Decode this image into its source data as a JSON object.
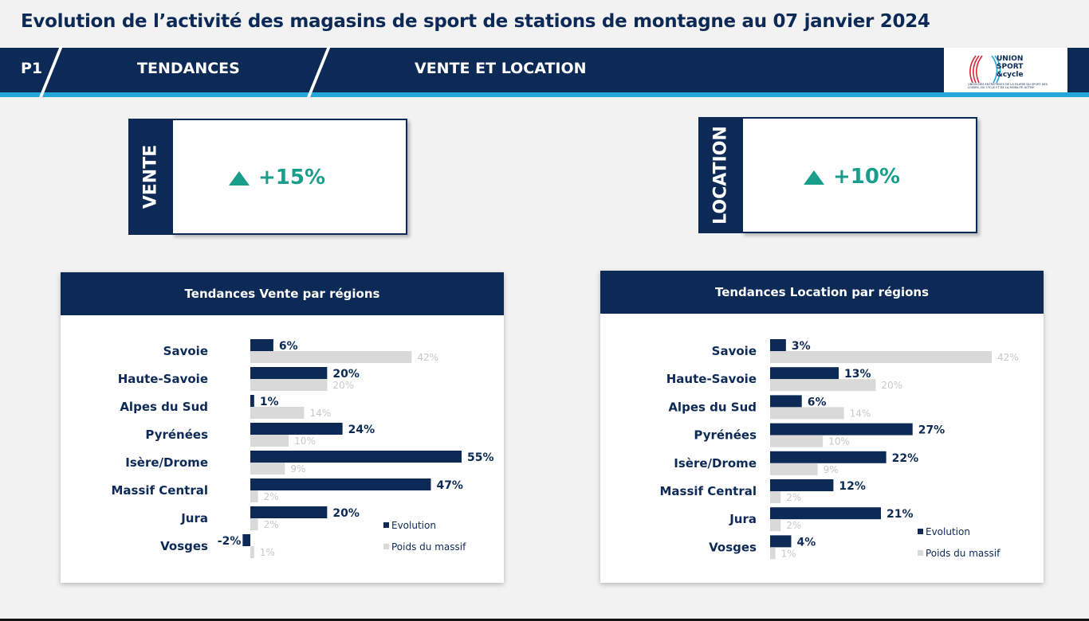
{
  "page": {
    "title": "Evolution de l’activité des magasins de sport de stations de montagne au 07 janvier 2024"
  },
  "banner": {
    "page_label": "P1",
    "section": "TENDANCES",
    "subsection": "VENTE ET LOCATION",
    "logo_text": [
      "UNION",
      "SPORT",
      "&cycle"
    ],
    "logo_tagline": "UNION DES ENTREPRISES DE LA FILIÈRE DU SPORT DES LOISIRS, DU CYCLE ET DE LA MOBILITÉ ACTIVE"
  },
  "kpis": {
    "vente": {
      "label": "VENTE",
      "value": "+15%",
      "icon": "up-triangle-icon"
    },
    "location": {
      "label": "LOCATION",
      "value": "+10%",
      "icon": "up-triangle-icon"
    }
  },
  "colors": {
    "navy": "#0d2a57",
    "accent_blue": "#24a7d8",
    "teal": "#1a9e8c",
    "grey_bar": "#d9d9d9"
  },
  "chart_data": [
    {
      "type": "bar",
      "orientation": "horizontal",
      "title": "Tendances Vente par régions",
      "categories": [
        "Savoie",
        "Haute-Savoie",
        "Alpes du Sud",
        "Pyrénées",
        "Isère/Drome",
        "Massif Central",
        "Jura",
        "Vosges"
      ],
      "series": [
        {
          "name": "Evolution",
          "values": [
            6,
            20,
            1,
            24,
            55,
            47,
            20,
            -2
          ],
          "labels": [
            "6%",
            "20%",
            "1%",
            "24%",
            "55%",
            "47%",
            "20%",
            "-2%"
          ],
          "color": "#0d2a57"
        },
        {
          "name": "Poids du massif",
          "values": [
            42,
            20,
            14,
            10,
            9,
            2,
            2,
            1
          ],
          "labels": [
            "42%",
            "20%",
            "14%",
            "10%",
            "9%",
            "2%",
            "2%",
            "1%"
          ],
          "color": "#d9d9d9"
        }
      ],
      "xlim": [
        -2,
        55
      ],
      "legend": "bottom-right",
      "grid": false
    },
    {
      "type": "bar",
      "orientation": "horizontal",
      "title": "Tendances Location par régions",
      "categories": [
        "Savoie",
        "Haute-Savoie",
        "Alpes du Sud",
        "Pyrénées",
        "Isère/Drome",
        "Massif Central",
        "Jura",
        "Vosges"
      ],
      "series": [
        {
          "name": "Evolution",
          "values": [
            3,
            13,
            6,
            27,
            22,
            12,
            21,
            4
          ],
          "labels": [
            "3%",
            "13%",
            "6%",
            "27%",
            "22%",
            "12%",
            "21%",
            "4%"
          ],
          "color": "#0d2a57"
        },
        {
          "name": "Poids du massif",
          "values": [
            42,
            20,
            14,
            10,
            9,
            2,
            2,
            1
          ],
          "labels": [
            "42%",
            "20%",
            "14%",
            "10%",
            "9%",
            "2%",
            "2%",
            "1%"
          ],
          "color": "#d9d9d9"
        }
      ],
      "xlim": [
        0,
        42
      ],
      "legend": "bottom-right",
      "grid": false
    }
  ]
}
